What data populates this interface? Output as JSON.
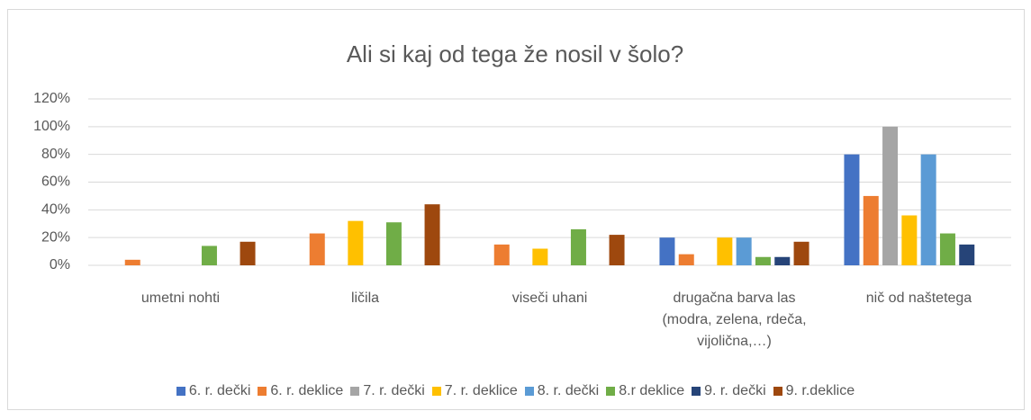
{
  "chart_data": {
    "type": "bar",
    "title": "Ali si kaj od tega že nosil v šolo?",
    "categories": [
      "umetni nohti",
      "ličila",
      "viseči uhani",
      "drugačna barva las (modra, zelena, rdeča, vijolična,…)",
      "nič od naštetega"
    ],
    "series": [
      {
        "name": "6. r. dečki",
        "color": "#4472c4",
        "values": [
          0,
          0,
          0,
          20,
          80
        ]
      },
      {
        "name": "6. r. deklice",
        "color": "#ed7d31",
        "values": [
          4,
          23,
          15,
          8,
          50
        ]
      },
      {
        "name": "7. r. dečki",
        "color": "#a5a5a5",
        "values": [
          0,
          0,
          0,
          0,
          100
        ]
      },
      {
        "name": "7. r. deklice",
        "color": "#ffc000",
        "values": [
          0,
          32,
          12,
          20,
          36
        ]
      },
      {
        "name": "8. r. dečki",
        "color": "#5b9bd5",
        "values": [
          0,
          0,
          0,
          20,
          80
        ]
      },
      {
        "name": "8.r deklice",
        "color": "#70ad47",
        "values": [
          14,
          31,
          26,
          6,
          23
        ]
      },
      {
        "name": "9. r. dečki",
        "color": "#264478",
        "values": [
          0,
          0,
          0,
          6,
          15
        ]
      },
      {
        "name": "9. r.deklice",
        "color": "#9e480e",
        "values": [
          17,
          44,
          22,
          17,
          0
        ]
      }
    ],
    "ylim": [
      0,
      120
    ],
    "yticks": [
      {
        "value": 0,
        "label": "0%"
      },
      {
        "value": 20,
        "label": "20%"
      },
      {
        "value": 40,
        "label": "40%"
      },
      {
        "value": 60,
        "label": "60%"
      },
      {
        "value": 80,
        "label": "80%"
      },
      {
        "value": 100,
        "label": "100%"
      },
      {
        "value": 120,
        "label": "120%"
      }
    ],
    "grid": true,
    "legend": "bottom"
  }
}
